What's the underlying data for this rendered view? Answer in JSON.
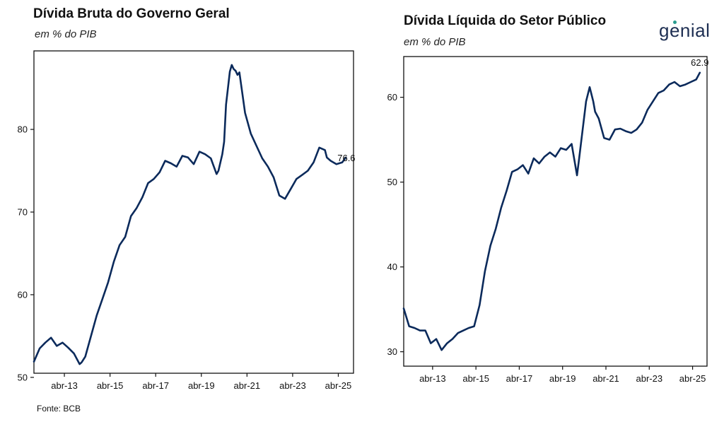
{
  "left_panel": {
    "title": "Dívida Bruta do Governo Geral",
    "subtitle": "em % do PIB"
  },
  "right_panel": {
    "title": "Dívida Líquida do Setor Público",
    "subtitle": "em % do PIB"
  },
  "logo_text": "genial",
  "source": "Fonte: BCB",
  "line_color": "#0b2a5b",
  "chart_data": [
    {
      "type": "line",
      "title": "Dívida Bruta do Governo Geral",
      "subtitle": "em % do PIB",
      "xlabel": "",
      "ylabel": "",
      "x_ticks": [
        "abr-13",
        "abr-15",
        "abr-17",
        "abr-19",
        "abr-21",
        "abr-23",
        "abr-25"
      ],
      "y_ticks": [
        50,
        60,
        70,
        80
      ],
      "xlim": [
        "2011-12",
        "2025-12"
      ],
      "ylim": [
        50.5,
        89.5
      ],
      "grid": false,
      "end_label": "76.6",
      "series": [
        {
          "x": [
            "2011-12",
            "2012-03",
            "2012-06",
            "2012-09",
            "2012-12",
            "2013-03",
            "2013-06",
            "2013-09",
            "2013-12",
            "2014-01",
            "2014-03",
            "2014-06",
            "2014-09",
            "2014-12",
            "2015-03",
            "2015-06",
            "2015-09",
            "2015-12",
            "2016-03",
            "2016-06",
            "2016-09",
            "2016-12",
            "2017-03",
            "2017-06",
            "2017-09",
            "2017-12",
            "2018-03",
            "2018-06",
            "2018-09",
            "2018-12",
            "2019-03",
            "2019-06",
            "2019-09",
            "2019-12",
            "2020-01",
            "2020-03",
            "2020-04",
            "2020-05",
            "2020-06",
            "2020-07",
            "2020-08",
            "2020-09",
            "2020-10",
            "2020-11",
            "2020-12",
            "2021-03",
            "2021-06",
            "2021-09",
            "2021-12",
            "2022-03",
            "2022-06",
            "2022-09",
            "2022-12",
            "2023-03",
            "2023-06",
            "2023-09",
            "2023-12",
            "2024-03",
            "2024-06",
            "2024-09",
            "2024-10",
            "2024-12",
            "2025-03",
            "2025-06",
            "2025-08"
          ],
          "y": [
            51.9,
            53.5,
            54.2,
            54.8,
            53.8,
            54.2,
            53.6,
            52.9,
            51.6,
            51.8,
            52.5,
            55.0,
            57.5,
            59.5,
            61.5,
            64.0,
            66.0,
            67.0,
            69.5,
            70.5,
            71.8,
            73.5,
            74.0,
            74.8,
            76.2,
            75.9,
            75.5,
            76.8,
            76.6,
            75.8,
            77.3,
            77.0,
            76.5,
            74.6,
            75.0,
            77.0,
            78.5,
            83.0,
            85.0,
            87.0,
            87.8,
            87.3,
            87.1,
            86.6,
            86.9,
            82.0,
            79.5,
            78.0,
            76.5,
            75.5,
            74.2,
            72.0,
            71.6,
            72.8,
            74.0,
            74.5,
            75.0,
            76.0,
            77.8,
            77.5,
            76.6,
            76.2,
            75.8,
            76.0,
            76.6
          ]
        }
      ]
    },
    {
      "type": "line",
      "title": "Dívida Líquida do Setor Público",
      "subtitle": "em % do PIB",
      "xlabel": "",
      "ylabel": "",
      "x_ticks": [
        "abr-13",
        "abr-15",
        "abr-17",
        "abr-19",
        "abr-21",
        "abr-23",
        "abr-25"
      ],
      "y_ticks": [
        30,
        40,
        50,
        60
      ],
      "xlim": [
        "2011-12",
        "2025-12"
      ],
      "ylim": [
        28.3,
        64.8
      ],
      "grid": false,
      "end_label": "62.9",
      "series": [
        {
          "x": [
            "2011-12",
            "2012-03",
            "2012-06",
            "2012-09",
            "2012-12",
            "2013-03",
            "2013-06",
            "2013-09",
            "2013-12",
            "2014-03",
            "2014-06",
            "2014-09",
            "2014-12",
            "2015-03",
            "2015-06",
            "2015-09",
            "2015-12",
            "2016-03",
            "2016-06",
            "2016-09",
            "2016-12",
            "2017-03",
            "2017-06",
            "2017-09",
            "2017-12",
            "2018-03",
            "2018-06",
            "2018-09",
            "2018-12",
            "2019-03",
            "2019-06",
            "2019-09",
            "2019-12",
            "2020-01",
            "2020-03",
            "2020-05",
            "2020-07",
            "2020-09",
            "2020-10",
            "2020-12",
            "2021-03",
            "2021-06",
            "2021-09",
            "2021-12",
            "2022-03",
            "2022-06",
            "2022-09",
            "2022-12",
            "2023-03",
            "2023-06",
            "2023-09",
            "2023-12",
            "2024-03",
            "2024-06",
            "2024-09",
            "2024-12",
            "2025-03",
            "2025-06",
            "2025-08"
          ],
          "y": [
            35.1,
            33.0,
            32.8,
            32.5,
            32.5,
            31.0,
            31.5,
            30.2,
            31.0,
            31.5,
            32.2,
            32.5,
            32.8,
            33.0,
            35.5,
            39.5,
            42.5,
            44.5,
            47.0,
            49.0,
            51.2,
            51.5,
            52.0,
            51.0,
            52.8,
            52.2,
            53.0,
            53.5,
            53.0,
            54.0,
            53.8,
            54.5,
            50.8,
            52.5,
            56.0,
            59.5,
            61.2,
            59.5,
            58.3,
            57.5,
            55.2,
            55.0,
            56.2,
            56.3,
            56.0,
            55.8,
            56.2,
            57.0,
            58.5,
            59.5,
            60.5,
            60.8,
            61.5,
            61.8,
            61.3,
            61.5,
            61.8,
            62.1,
            62.9
          ]
        }
      ]
    }
  ]
}
